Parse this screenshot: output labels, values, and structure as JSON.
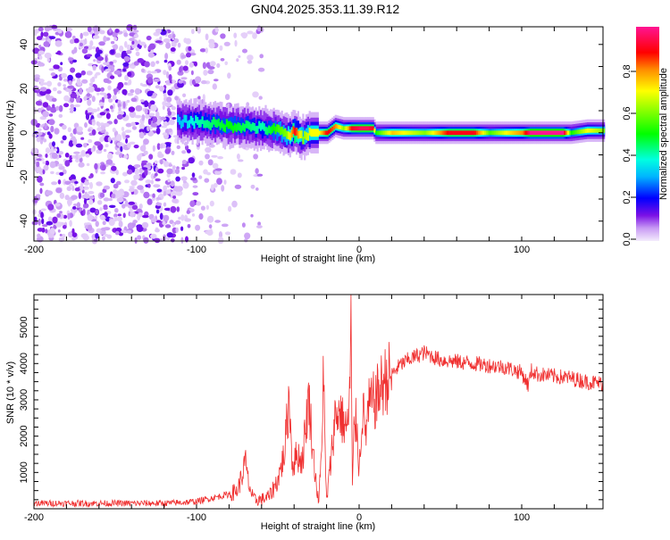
{
  "title": "GN04.2025.353.11.39.R12",
  "chart_data": [
    {
      "type": "heatmap",
      "xlabel": "Height of straight line (km)",
      "ylabel": "Frequency (Hz)",
      "xlim": [
        -200,
        150
      ],
      "ylim": [
        -49,
        48
      ],
      "xticks": [
        -200,
        -100,
        0,
        100
      ],
      "yticks": [
        -40,
        -20,
        0,
        20,
        40
      ],
      "colorbar": {
        "label": "Normalized spectral amplitude",
        "range": [
          0,
          1
        ],
        "ticks": [
          "0.0",
          "0.2",
          "0.4",
          "0.6",
          "0.8"
        ],
        "colormap": [
          [
            0,
            "#f4ecfc"
          ],
          [
            0.06,
            "#c89af4"
          ],
          [
            0.12,
            "#7a10e6"
          ],
          [
            0.2,
            "#0000ff"
          ],
          [
            0.3,
            "#00b4ff"
          ],
          [
            0.38,
            "#00ffe0"
          ],
          [
            0.5,
            "#00ff00"
          ],
          [
            0.7,
            "#ffff00"
          ],
          [
            0.8,
            "#ff8c00"
          ],
          [
            0.88,
            "#ff0000"
          ],
          [
            1,
            "#ff1493"
          ]
        ]
      },
      "noise_region": {
        "x_range": [
          -200,
          -60
        ],
        "amplitude_range": [
          0.02,
          0.15
        ]
      },
      "ridge": {
        "x": [
          -112,
          -100,
          -90,
          -80,
          -70,
          -60,
          -50,
          -45,
          -40,
          -35,
          -30,
          -25,
          -20,
          -15,
          -10,
          -5,
          0,
          5,
          8,
          10,
          20,
          40,
          55,
          70,
          80,
          90,
          100,
          105,
          125,
          130,
          140,
          150
        ],
        "freq_hz": [
          5,
          5,
          4,
          3,
          3,
          2,
          1,
          -1,
          0,
          -2,
          0,
          0,
          0,
          3,
          2,
          2,
          2,
          2,
          2,
          0,
          0,
          0,
          0,
          0,
          0,
          0,
          0,
          0,
          0,
          0,
          1,
          1
        ],
        "amplitude": [
          0.3,
          0.4,
          0.45,
          0.5,
          0.45,
          0.4,
          0.55,
          0.6,
          0.9,
          0.6,
          0.7,
          0.7,
          0.9,
          0.8,
          0.6,
          0.9,
          0.95,
          0.95,
          0.9,
          0.5,
          0.75,
          0.6,
          0.9,
          0.9,
          0.55,
          0.7,
          0.8,
          1.0,
          1.0,
          0.5,
          0.7,
          0.6
        ]
      }
    },
    {
      "type": "line",
      "xlabel": "Height of straight line (km)",
      "ylabel": "SNR (10 * v/v)",
      "xlim": [
        -200,
        150
      ],
      "ylim": [
        0,
        5900
      ],
      "xticks": [
        -200,
        -100,
        0,
        100
      ],
      "yticks": [
        1000,
        2000,
        3000,
        4000,
        5000
      ],
      "series": [
        {
          "name": "SNR",
          "color": "#f03030",
          "x": [
            -200,
            -180,
            -160,
            -140,
            -120,
            -110,
            -100,
            -90,
            -80,
            -75,
            -72,
            -70,
            -68,
            -65,
            -60,
            -55,
            -50,
            -46,
            -43,
            -41,
            -38,
            -35,
            -33,
            -31,
            -28,
            -25,
            -23,
            -22,
            -21,
            -20,
            -17,
            -15,
            -12,
            -10,
            -7,
            -5.5,
            -5,
            -4.2,
            -3,
            -1,
            0,
            2,
            4,
            6,
            10,
            15,
            20,
            25,
            30,
            35,
            40,
            45,
            50,
            60,
            70,
            80,
            90,
            100,
            104,
            106,
            110,
            120,
            130,
            140,
            150
          ],
          "y": [
            150,
            150,
            150,
            150,
            150,
            170,
            200,
            300,
            400,
            500,
            900,
            1300,
            700,
            250,
            250,
            350,
            800,
            1500,
            3100,
            1200,
            1500,
            1300,
            2200,
            3100,
            1400,
            150,
            1500,
            4300,
            1500,
            200,
            1500,
            2500,
            2700,
            2400,
            2200,
            3500,
            5900,
            300,
            2500,
            2200,
            1000,
            2800,
            2100,
            2800,
            3000,
            3500,
            3700,
            3950,
            4100,
            4200,
            4300,
            4200,
            4100,
            4050,
            4000,
            3950,
            3900,
            3750,
            3400,
            3800,
            3700,
            3650,
            3600,
            3500,
            3450
          ]
        }
      ]
    }
  ]
}
